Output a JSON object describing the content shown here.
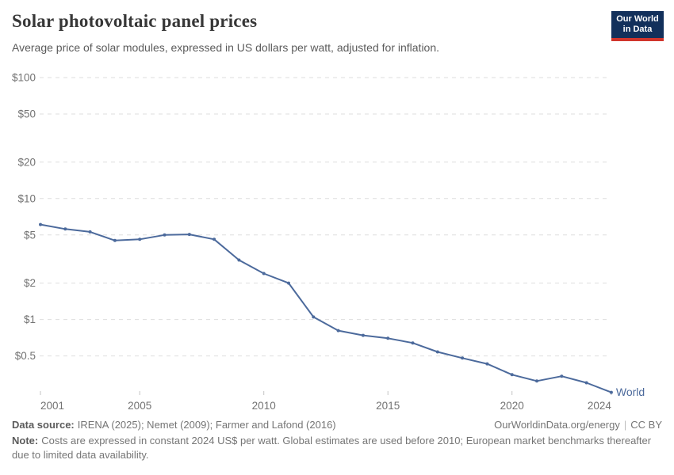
{
  "header": {
    "title": "Solar photovoltaic panel prices",
    "subtitle": "Average price of solar modules, expressed in US dollars per watt, adjusted for inflation.",
    "logo": {
      "line1": "Our World",
      "line2": "in Data",
      "bg_color": "#12305b",
      "accent_color": "#d0352c"
    }
  },
  "chart": {
    "entity_label": "World",
    "colors": {
      "line": "#4C6A9C",
      "grid": "#dedede",
      "tick_text": "#737373",
      "axis_tick_mark": "#c4c4c4"
    },
    "y_ticks": [
      {
        "label": "$100",
        "value": 100
      },
      {
        "label": "$50",
        "value": 50
      },
      {
        "label": "$20",
        "value": 20
      },
      {
        "label": "$10",
        "value": 10
      },
      {
        "label": "$5",
        "value": 5
      },
      {
        "label": "$2",
        "value": 2
      },
      {
        "label": "$1",
        "value": 1
      },
      {
        "label": "$0.5",
        "value": 0.5
      }
    ],
    "x_ticks": [
      {
        "label": "2001",
        "year": 2001
      },
      {
        "label": "2005",
        "year": 2005
      },
      {
        "label": "2010",
        "year": 2010
      },
      {
        "label": "2015",
        "year": 2015
      },
      {
        "label": "2020",
        "year": 2020
      },
      {
        "label": "2024",
        "year": 2024
      }
    ]
  },
  "chart_data": {
    "type": "line",
    "title": "Solar photovoltaic panel prices",
    "subtitle": "Average price of solar modules, expressed in US dollars per watt, adjusted for inflation.",
    "x": [
      2001,
      2002,
      2003,
      2004,
      2005,
      2006,
      2007,
      2008,
      2009,
      2010,
      2011,
      2012,
      2013,
      2014,
      2015,
      2016,
      2017,
      2018,
      2019,
      2020,
      2021,
      2022,
      2023,
      2024
    ],
    "series": [
      {
        "name": "World",
        "values": [
          6.1,
          5.6,
          5.3,
          4.5,
          4.6,
          5.0,
          5.05,
          4.6,
          3.1,
          2.4,
          2.0,
          1.05,
          0.81,
          0.74,
          0.7,
          0.64,
          0.54,
          0.48,
          0.43,
          0.35,
          0.31,
          0.34,
          0.3,
          0.25
        ]
      }
    ],
    "xlabel": "",
    "ylabel": "",
    "y_scale": "log",
    "ylim": [
      0.25,
      100
    ],
    "xlim": [
      2001,
      2024
    ],
    "grid": "horizontal-dashed",
    "legend_position": "end-of-line"
  },
  "footer": {
    "source_label": "Data source:",
    "source_text": "IRENA (2025); Nemet (2009); Farmer and Lafond (2016)",
    "url": "OurWorldinData.org/energy",
    "separator": "|",
    "license": "CC BY",
    "note_label": "Note:",
    "note_text": "Costs are expressed in constant 2024 US$ per watt. Global estimates are used before 2010; European market benchmarks thereafter due to limited data availability."
  }
}
